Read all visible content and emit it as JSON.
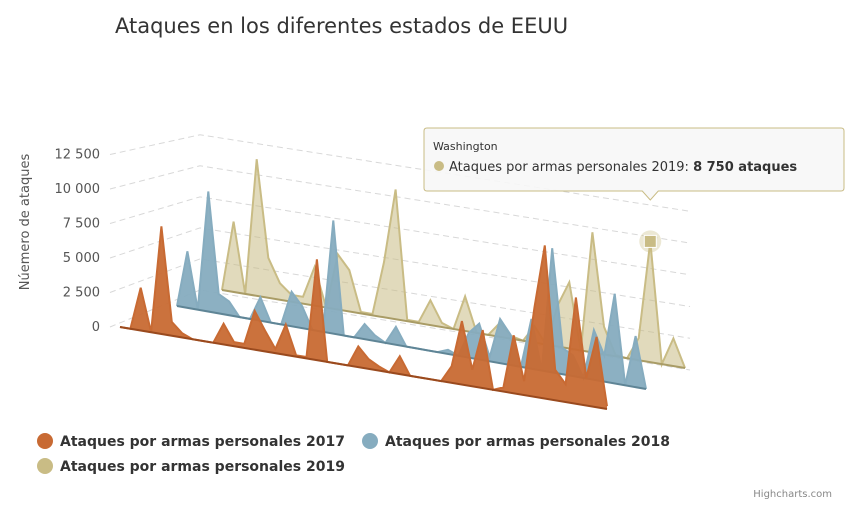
{
  "chart_data": {
    "type": "area",
    "title": "Ataques en los diferentes estados de EEUU",
    "ylabel": "Núemero de ataques",
    "ylim": [
      0,
      12500
    ],
    "yticks": [
      "0",
      "2 500",
      "5 000",
      "7 500",
      "10 000",
      "12 500"
    ],
    "ytick_values": [
      0,
      2500,
      5000,
      7500,
      10000,
      12500
    ],
    "grid": true,
    "legend_position": "bottom-left",
    "series": [
      {
        "name": "Ataques por armas personales 2017",
        "color": "#C86A33",
        "values": [
          0,
          0,
          3100,
          0,
          7800,
          1000,
          300,
          0,
          0,
          0,
          1500,
          300,
          300,
          2800,
          1500,
          300,
          2200,
          100,
          100,
          7300,
          0,
          0,
          0,
          1500,
          700,
          300,
          0,
          1300,
          0,
          0,
          0,
          0,
          1200,
          4600,
          1200,
          4200,
          0,
          300,
          4200,
          1000,
          6500,
          11100,
          2200,
          1300,
          7700,
          2000,
          5100,
          200
        ]
      },
      {
        "name": "Ataques por armas personales 2018",
        "color": "#86ACBF",
        "values": [
          0,
          4100,
          0,
          8700,
          1400,
          1000,
          0,
          0,
          1700,
          0,
          0,
          2500,
          1600,
          0,
          0,
          8200,
          0,
          0,
          1100,
          400,
          0,
          1300,
          0,
          0,
          0,
          0,
          300,
          0,
          1800,
          2600,
          300,
          3200,
          2200,
          0,
          3600,
          0,
          9000,
          1900,
          1500,
          0,
          3600,
          1900,
          6500,
          0,
          3700,
          0
        ]
      },
      {
        "name": "Ataques por armas personales 2019",
        "color": "#C9BC85",
        "values": [
          0,
          5100,
          0,
          9900,
          2900,
          1200,
          500,
          500,
          2800,
          0,
          4000,
          3000,
          100,
          100,
          4000,
          9400,
          100,
          100,
          1800,
          300,
          0,
          2500,
          0,
          0,
          1000,
          200,
          0,
          1200,
          0,
          3000,
          4800,
          0,
          8700,
          2000,
          100,
          0,
          1600,
          8750,
          0,
          2000,
          0
        ]
      }
    ],
    "tooltip": {
      "category": "Washington",
      "series": "Ataques por armas personales 2019",
      "value_text": "8 750 ataques"
    }
  },
  "credits": "Highcharts.com"
}
